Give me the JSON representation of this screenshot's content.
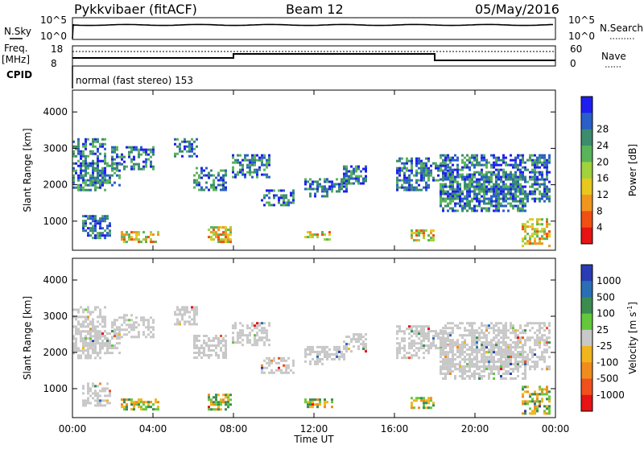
{
  "header": {
    "title": "Pykkvibaer (fitACF)",
    "beam": "Beam 12",
    "date": "05/May/2016"
  },
  "noise_panel": {
    "left_label": "N.Sky",
    "right_label": "N.Search",
    "left_ticks": [
      "10^5",
      "10^0"
    ],
    "right_ticks": [
      "10^5",
      "10^0"
    ]
  },
  "freq_panel": {
    "left_label": "Freq.",
    "left_unit": "[MHz]",
    "right_label": "Nave",
    "left_ticks": [
      "18",
      "8"
    ],
    "right_ticks": [
      "60",
      "0"
    ]
  },
  "cpid_panel": {
    "label": "CPID",
    "mode_text": "normal (fast stereo) 153"
  },
  "chart_data": [
    {
      "type": "heatmap",
      "name_hint": "power",
      "ylabel": "Slant Range [km]",
      "xlabel": "",
      "x_ticks": [
        "00:00",
        "04:00",
        "08:00",
        "12:00",
        "16:00",
        "20:00",
        "00:00"
      ],
      "y_ticks": [
        1000,
        2000,
        3000,
        4000
      ],
      "ylim": [
        200,
        4600
      ],
      "colorbar": {
        "label": "Power [dB]",
        "ticks": [
          "4",
          "8",
          "12",
          "16",
          "20",
          "24",
          "28"
        ],
        "colors": [
          "#1e1ef0",
          "#2a5fc8",
          "#3c8c6e",
          "#5ab45a",
          "#a0d23c",
          "#e6c81e",
          "#f0961e",
          "#f05014",
          "#e61414"
        ]
      }
    },
    {
      "type": "heatmap",
      "name_hint": "velocity",
      "ylabel": "Slant Range [km]",
      "xlabel": "Time UT",
      "x_ticks": [
        "00:00",
        "04:00",
        "08:00",
        "12:00",
        "16:00",
        "20:00",
        "00:00"
      ],
      "y_ticks": [
        1000,
        2000,
        3000,
        4000
      ],
      "ylim": [
        200,
        4600
      ],
      "colorbar": {
        "label": "Velocity [m s",
        "label_sup": "-1",
        "label_end": "]",
        "ticks": [
          "1000",
          "500",
          "100",
          "25",
          "-25",
          "-100",
          "-500",
          "-1000"
        ],
        "colors": [
          "#2a3cb4",
          "#2a6eb4",
          "#3c8c50",
          "#64c83c",
          "#c8c8c8",
          "#f0b41e",
          "#f08c1e",
          "#f0501e",
          "#e61414"
        ]
      }
    }
  ]
}
